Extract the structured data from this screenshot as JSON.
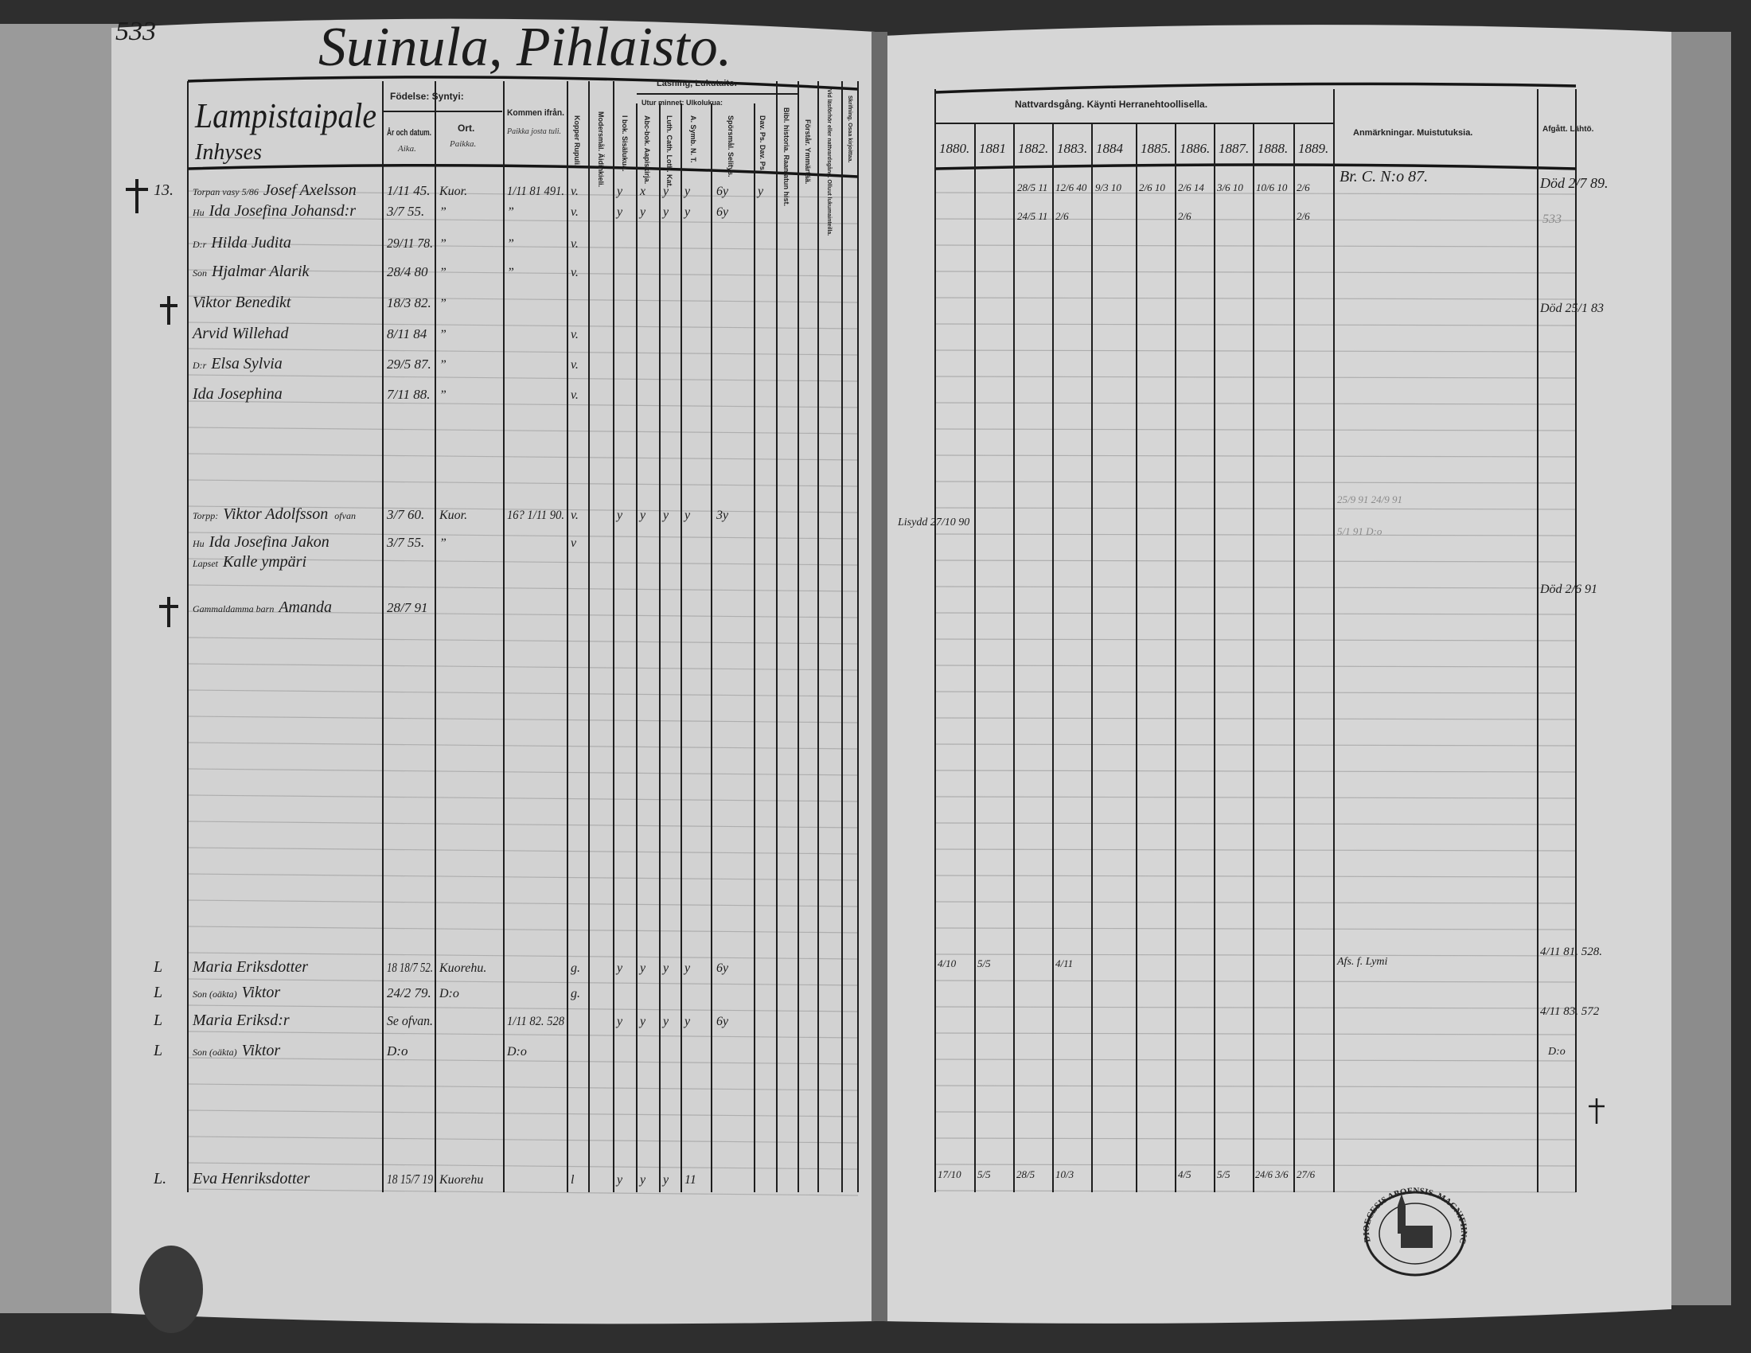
{
  "document": {
    "page_number": "533",
    "title": "Suinula, Pihlaisto.",
    "village_heading": "Lampistaipale",
    "sub_heading": "Inhyses"
  },
  "left_headers": {
    "fodelse": "Födelse: Syntyi:",
    "ar": "År och datum.",
    "ar_fi": "Aika.",
    "ort": "Ort.",
    "ort_fi": "Paikka.",
    "kommen": "Kommen ifrån.",
    "kommen_fi": "Paikka josta tuli.",
    "kopper": "Kopper Rupuli.",
    "modersmal": "Modersmål. Äidinkieli.",
    "lasning": "Läsning, Lukutaito.",
    "i_bok": "I bok. Sisälukua.",
    "utur_minnet": "Utur minnet: Ulkolukua:",
    "abc": "Abc-bok. Aapiskirja.",
    "luth": "Luth. Cath. Loth. Kat.",
    "symb": "A. Symb. N. T.",
    "sporsmal": "Spörsmål. Selitys.",
    "dav": "Dav. Ps. Dav. Ps.",
    "bibl": "Bibl. historia. Raamatun hist.",
    "forstar": "Förstår. Ymmärtää.",
    "nattvard": "Vid läsförhör eller nattvardsgång. Olluut lukumainteilla.",
    "skrifning": "Skrifning. Osaa kirjoittaa."
  },
  "right_headers": {
    "nattvardsgang": "Nattvardsgång. Käynti Herranehtoollisella.",
    "years": [
      "1880.",
      "1881",
      "1882.",
      "1883.",
      "1884",
      "1885.",
      "1886.",
      "1887.",
      "1888.",
      "1889."
    ],
    "anmarkningar": "Anmärkningar. Muistutuksia.",
    "afgatt": "Afgått. Lähtö."
  },
  "rows": [
    {
      "note": "Torpan vasy 5/86",
      "margin": "13.",
      "name": "Josef Axelsson",
      "date": "1/11 45.",
      "place": "Kuor.",
      "from": "1/11 81 491.",
      "kopper": "v.",
      "reading": [
        "y",
        "x",
        "y",
        "y",
        "6y",
        "y"
      ]
    },
    {
      "note": "Hu",
      "name": "Ida Josefina Johansd:r",
      "date": "3/7 55.",
      "place": "”",
      "from": "”",
      "kopper": "v.",
      "reading": [
        "y",
        "y",
        "y",
        "y",
        "6y",
        ""
      ]
    },
    {
      "note": "D:r",
      "name": "Hilda Judita",
      "date": "29/11 78.",
      "place": "”",
      "from": "”",
      "kopper": "v."
    },
    {
      "note": "Son",
      "name": "Hjalmar Alarik",
      "date": "28/4 80",
      "place": "”",
      "from": "”",
      "kopper": "v."
    },
    {
      "name": "Viktor Benedikt",
      "date": "18/3 82.",
      "place": "”"
    },
    {
      "name": "Arvid Willehad",
      "date": "8/11 84",
      "place": "”",
      "kopper": "v."
    },
    {
      "note": "D:r",
      "name": "Elsa Sylvia",
      "date": "29/5 87.",
      "place": "”",
      "kopper": "v."
    },
    {
      "name": "Ida Josephina",
      "date": "7/11 88.",
      "place": "”",
      "kopper": "v."
    },
    {
      "note": "Torpp:",
      "name": "Viktor Adolfsson",
      "extra": "ofvan",
      "date": "3/7 60.",
      "place": "Kuor.",
      "from": "16? 1/11 90.",
      "kopper": "v.",
      "reading": [
        "y",
        "y",
        "y",
        "y",
        "3y",
        ""
      ]
    },
    {
      "note": "Hu",
      "name": "Ida Josefina Jakon",
      "date": "3/7 55.",
      "place": "”",
      "kopper": "v"
    },
    {
      "note": "Lapset",
      "name": "Kalle ympäri"
    },
    {
      "note": "Gammaldamma barn",
      "name": "Amanda",
      "date": "28/7 91"
    },
    {
      "margin": "L",
      "name": "Maria Eriksdotter",
      "date": "18 18/7 52.",
      "place": "Kuorehu.",
      "kopper": "g.",
      "reading": [
        "y",
        "y",
        "y",
        "y",
        "6y",
        ""
      ]
    },
    {
      "margin": "L",
      "note": "Son (oäkta)",
      "name": "Viktor",
      "date": "24/2 79.",
      "place": "D:o",
      "kopper": "g."
    },
    {
      "margin": "L",
      "name": "Maria Eriksd:r",
      "date": "Se ofvan.",
      "from": "1/11 82. 528",
      "reading": [
        "y",
        "y",
        "y",
        "y",
        "6y",
        ""
      ]
    },
    {
      "margin": "L",
      "note": "Son (oäkta)",
      "name": "Viktor",
      "date": "D:o",
      "from": "D:o"
    },
    {
      "margin": "L.",
      "name": "Eva Henriksdotter",
      "date": "18 15/7 19",
      "place": "Kuorehu",
      "kopper": "l",
      "reading": [
        "y",
        "y",
        "y",
        "11",
        "",
        ""
      ]
    }
  ],
  "right_entries": {
    "row1_years": [
      "28/5 11",
      "12/6 40",
      "9/3 10",
      "2/6 10",
      "2/6 14",
      "3/6 10",
      "10/6 10",
      "2/6"
    ],
    "row2_years": [
      "24/5 11",
      "2/6",
      "2/6",
      "2/6"
    ],
    "remark_1": "Br. C. N:o 87.",
    "afgatt_1": "Död 2/7 89.",
    "afgatt_1b": "533",
    "afgatt_2": "Död 25/1 83",
    "viktor_note": "Lisydd 27/10 90",
    "viktor_remark": "25/9 91  24/9 91",
    "viktor_remark2": "5/1 91  D:o",
    "afgatt_3": "Död 2/6 91",
    "maria_years": [
      "4/10",
      "5/5",
      "4/11"
    ],
    "maria_remark": "Afs. f. Lymi",
    "afgatt_4": "4/11 81. 528.",
    "afgatt_5": "4/11 83. 572",
    "afgatt_6": "D:o",
    "eva_years": [
      "17/10",
      "5/5",
      "28/5",
      "10/3",
      "4/5",
      "5/5",
      "24/6",
      "3/6",
      "27/6"
    ]
  },
  "stamp": {
    "text": "DIOECESIS ABOENSIS. MAGNIFIINC. FINL."
  },
  "colors": {
    "paper": "#d4d4d4",
    "ink": "#1c1c1c",
    "edge": "#3a3a3a"
  }
}
